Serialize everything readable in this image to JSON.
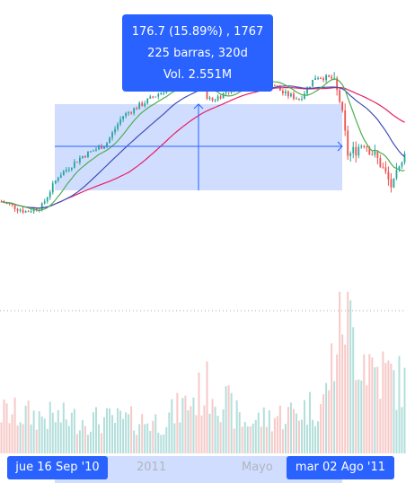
{
  "measure": {
    "line1": "176.7 (15.89%) , 1767",
    "line2": "225 barras, 320d",
    "line3": "Vol. 2.551M"
  },
  "xaxis": {
    "start_label": "jue 16 Sep '10",
    "tick_2011": "2011",
    "tick_mayo": "Mayo",
    "end_label": "mar 02 Ago '11"
  },
  "colors": {
    "up": "#26a69a",
    "down": "#ef5350",
    "ma_fast": "#4caf50",
    "ma_mid": "#3f51b5",
    "ma_slow": "#e91e63",
    "measure": "#2962ff"
  },
  "chart_data": {
    "type": "candlestick-with-volume",
    "x_start": "jue 16 Sep '10",
    "x_end": "mar 02 Ago '11",
    "x_ticks": [
      "2011",
      "Mayo"
    ],
    "measurement": {
      "price_change": 176.7,
      "percent_change": 15.89,
      "ticks": 1767,
      "bars": 225,
      "days": 320,
      "volume": "2.551M"
    },
    "price_path": [
      [
        0,
        1100
      ],
      [
        0.06,
        1080
      ],
      [
        0.1,
        1090
      ],
      [
        0.14,
        1150
      ],
      [
        0.2,
        1190
      ],
      [
        0.26,
        1215
      ],
      [
        0.3,
        1270
      ],
      [
        0.36,
        1300
      ],
      [
        0.42,
        1330
      ],
      [
        0.48,
        1340
      ],
      [
        0.52,
        1300
      ],
      [
        0.56,
        1320
      ],
      [
        0.6,
        1335
      ],
      [
        0.66,
        1345
      ],
      [
        0.7,
        1315
      ],
      [
        0.74,
        1305
      ],
      [
        0.78,
        1350
      ],
      [
        0.82,
        1345
      ],
      [
        0.84,
        1300
      ],
      [
        0.86,
        1190
      ],
      [
        0.9,
        1220
      ],
      [
        0.94,
        1175
      ],
      [
        0.97,
        1125
      ],
      [
        1.0,
        1200
      ]
    ],
    "volume_path": [
      [
        0,
        1.2
      ],
      [
        0.2,
        1.0
      ],
      [
        0.4,
        0.95
      ],
      [
        0.52,
        2.0
      ],
      [
        0.6,
        0.9
      ],
      [
        0.72,
        1.2
      ],
      [
        0.8,
        1.5
      ],
      [
        0.85,
        4.5
      ],
      [
        0.87,
        3.5
      ],
      [
        0.92,
        2.6
      ],
      [
        0.96,
        2.3
      ],
      [
        1.0,
        2.0
      ]
    ],
    "ylim": [
      1040,
      1380
    ],
    "series": [
      {
        "name": "",
        "style": "candles"
      },
      {
        "name": "",
        "style": "line",
        "color": "#4caf50"
      },
      {
        "name": "",
        "style": "line",
        "color": "#3f51b5"
      },
      {
        "name": "",
        "style": "line",
        "color": "#e91e63"
      },
      {
        "name": "",
        "style": "volume"
      }
    ]
  }
}
